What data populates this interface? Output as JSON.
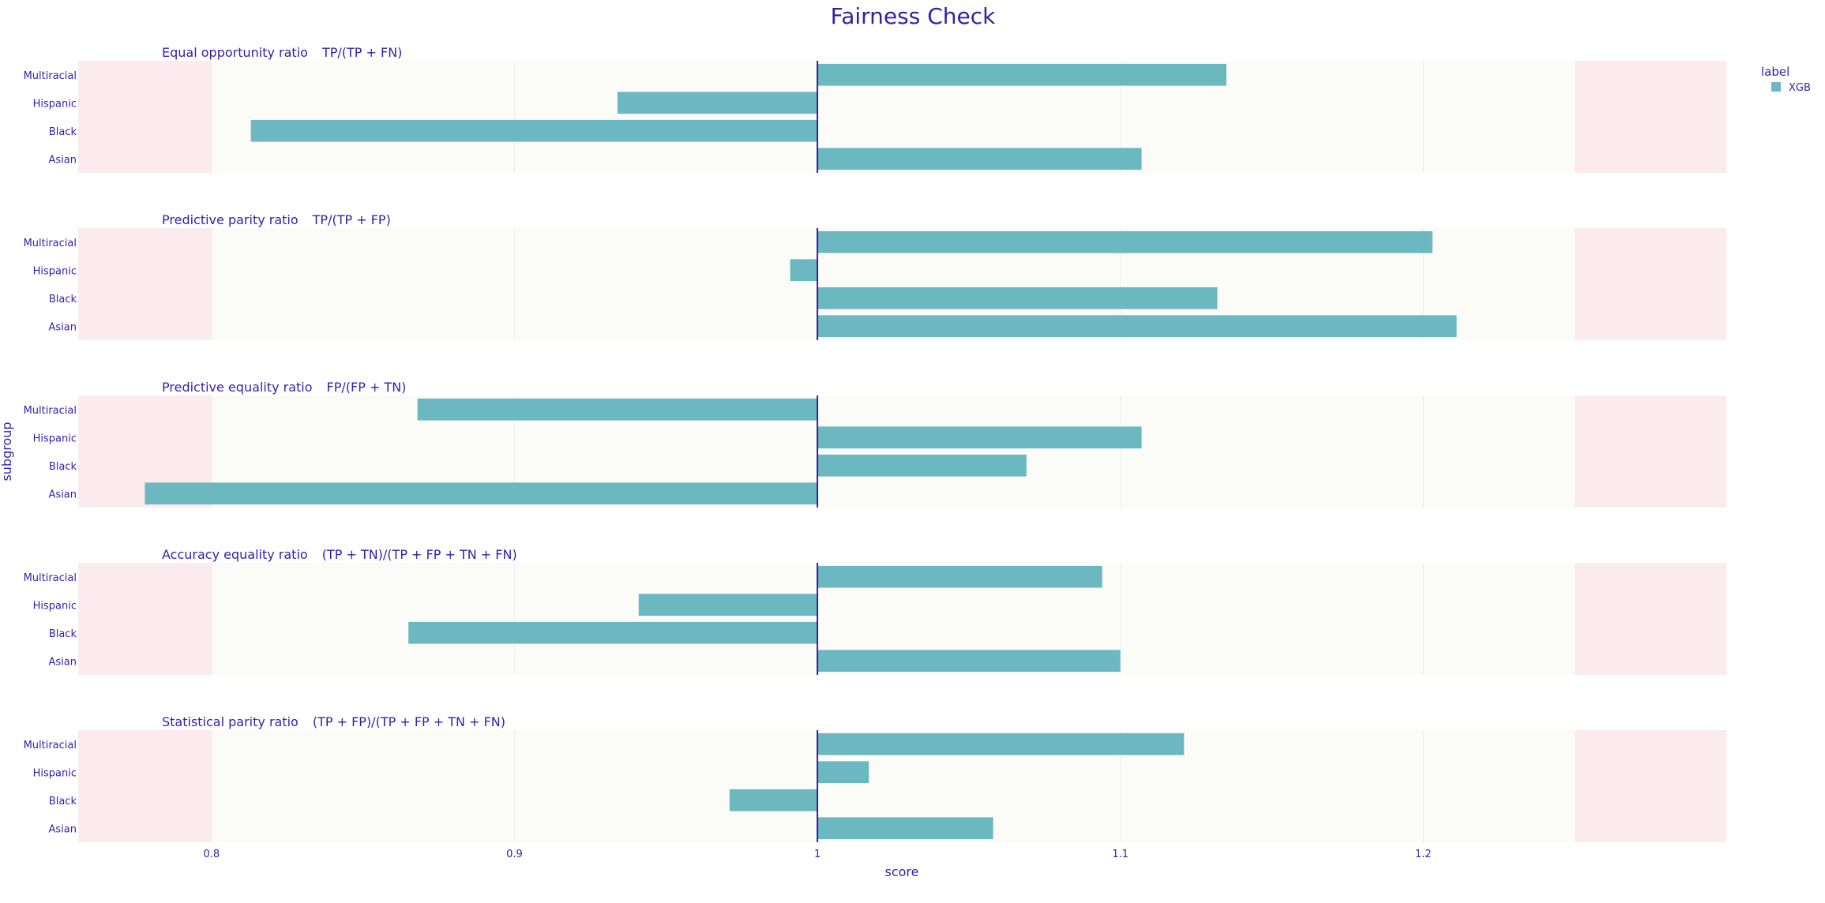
{
  "chart_data": {
    "type": "bar",
    "orientation": "horizontal",
    "title": "Fairness Check",
    "xlabel": "score",
    "ylabel": "subgroup",
    "xlim": [
      0.756,
      1.3
    ],
    "xticks": [
      0.8,
      0.9,
      1.0,
      1.1,
      1.2
    ],
    "xtick_labels": [
      "0.8",
      "0.9",
      "1",
      "1.1",
      "1.2"
    ],
    "baseline": 1.0,
    "fair_range": [
      0.8,
      1.25
    ],
    "grid": true,
    "legend": {
      "title": "label",
      "position": "top-right",
      "entries": [
        "XGB"
      ]
    },
    "series_name": "XGB",
    "categories": [
      "Multiracial",
      "Hispanic",
      "Black",
      "Asian"
    ],
    "panels": [
      {
        "metric": "Equal opportunity ratio",
        "formula": "TP/(TP + FN)",
        "values": [
          1.135,
          0.934,
          0.813,
          1.107
        ]
      },
      {
        "metric": "Predictive parity ratio",
        "formula": "TP/(TP + FP)",
        "values": [
          1.203,
          0.991,
          1.132,
          1.211
        ]
      },
      {
        "metric": "Predictive equality ratio",
        "formula": "FP/(FP + TN)",
        "values": [
          0.868,
          1.107,
          1.069,
          0.778
        ]
      },
      {
        "metric": "Accuracy equality ratio",
        "formula": "(TP + TN)/(TP + FP + TN + FN)",
        "values": [
          1.094,
          0.941,
          0.865,
          1.1
        ]
      },
      {
        "metric": "Statistical parity ratio",
        "formula": "(TP + FP)/(TP + FP + TN + FN)",
        "values": [
          1.121,
          1.017,
          0.971,
          1.058
        ]
      }
    ],
    "colors": {
      "bar": "#6bb8c0",
      "text": "#371ea3",
      "unfair_zone": "#fcebee",
      "fair_zone": "#fbfcf8",
      "baseline": "#371ea3",
      "grid": "#eeeeee"
    }
  }
}
